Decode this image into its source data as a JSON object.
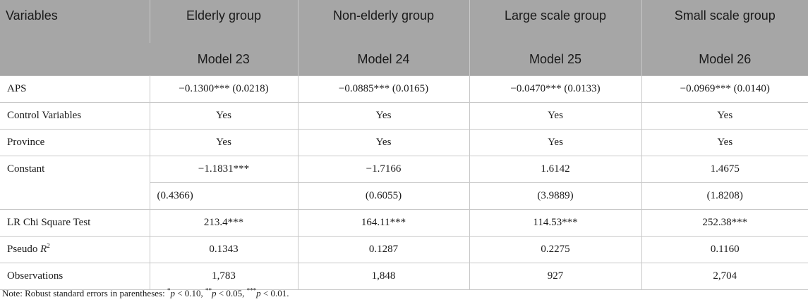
{
  "header": {
    "variables_label": "Variables",
    "groups": [
      "Elderly group",
      "Non-elderly group",
      "Large scale group",
      "Small scale group"
    ],
    "models": [
      "Model 23",
      "Model 24",
      "Model 25",
      "Model 26"
    ]
  },
  "rows": {
    "aps": {
      "label": "APS",
      "values": [
        "−0.1300*** (0.0218)",
        "−0.0885*** (0.0165)",
        "−0.0470*** (0.0133)",
        "−0.0969*** (0.0140)"
      ]
    },
    "control": {
      "label": "Control Variables",
      "values": [
        "Yes",
        "Yes",
        "Yes",
        "Yes"
      ]
    },
    "province": {
      "label": "Province",
      "values": [
        "Yes",
        "Yes",
        "Yes",
        "Yes"
      ]
    },
    "constant": {
      "label": "Constant",
      "values": [
        "−1.1831***",
        "−1.7166",
        "1.6142",
        "1.4675"
      ],
      "se": [
        "(0.4366)",
        "(0.6055)",
        "(3.9889)",
        "(1.8208)"
      ]
    },
    "lr": {
      "label": "LR Chi Square Test",
      "values": [
        "213.4***",
        "164.11***",
        "114.53***",
        "252.38***"
      ]
    },
    "pseudo": {
      "label_prefix": "Pseudo ",
      "label_var": "R",
      "label_sup": "2",
      "values": [
        "0.1343",
        "0.1287",
        "0.2275",
        "0.1160"
      ]
    },
    "obs": {
      "label": "Observations",
      "values": [
        "1,783",
        "1,848",
        "927",
        "2,704"
      ]
    }
  },
  "note": {
    "prefix": "Note: Robust standard errors in parentheses: ",
    "s1": "*",
    "p1": "p",
    "t1": " < 0.10, ",
    "s2": "**",
    "p2": "p",
    "t2": " < 0.05, ",
    "s3": "***",
    "p3": "p",
    "t3": " < 0.01."
  }
}
